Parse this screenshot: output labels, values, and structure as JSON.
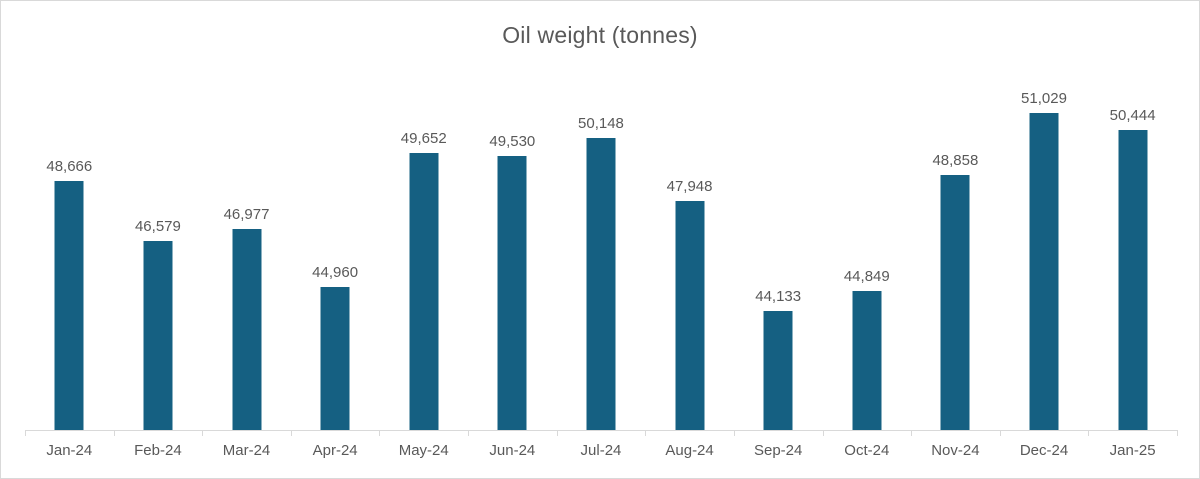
{
  "chart_title": "Oil weight (tonnes)",
  "colors": {
    "bar": "#156082",
    "title_text": "#595959",
    "label_text": "#595959",
    "axis_line": "#d9d9d9",
    "frame_border": "#d9d9d9",
    "background": "#ffffff"
  },
  "chart_data": {
    "type": "bar",
    "title": "Oil weight (tonnes)",
    "xlabel": "",
    "ylabel": "",
    "categories": [
      "Jan-24",
      "Feb-24",
      "Mar-24",
      "Apr-24",
      "May-24",
      "Jun-24",
      "Jul-24",
      "Aug-24",
      "Sep-24",
      "Oct-24",
      "Nov-24",
      "Dec-24",
      "Jan-25"
    ],
    "values": [
      48666,
      46579,
      46977,
      44960,
      49652,
      49530,
      50148,
      47948,
      44133,
      44849,
      48858,
      51029,
      50444
    ],
    "value_labels": [
      "48,666",
      "46,579",
      "46,977",
      "44,960",
      "49,652",
      "49,530",
      "50,148",
      "47,948",
      "44,133",
      "44,849",
      "48,858",
      "51,029",
      "50,444"
    ],
    "ylim": [
      40000,
      52000
    ],
    "grid": false,
    "legend": false,
    "data_labels_visible": true,
    "x_axis_ticks": "outside-at-category-boundaries"
  }
}
